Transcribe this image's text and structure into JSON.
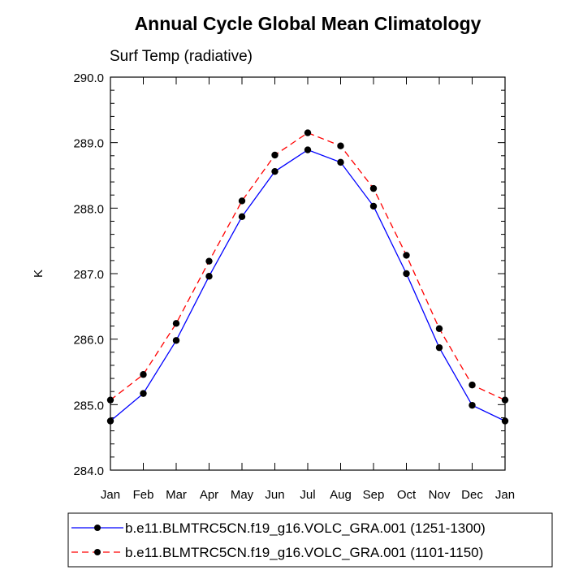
{
  "chart_data": {
    "type": "line",
    "title": "Annual Cycle Global Mean Climatology",
    "subtitle": "Surf Temp (radiative)",
    "xlabel": "",
    "ylabel": "K",
    "categories": [
      "Jan",
      "Feb",
      "Mar",
      "Apr",
      "May",
      "Jun",
      "Jul",
      "Aug",
      "Sep",
      "Oct",
      "Nov",
      "Dec",
      "Jan"
    ],
    "ylim": [
      284.0,
      290.0
    ],
    "yticks": [
      "284.0",
      "285.0",
      "286.0",
      "287.0",
      "288.0",
      "289.0",
      "290.0"
    ],
    "grid": false,
    "legend_position": "bottom",
    "series": [
      {
        "name": "b.e11.BLMTRC5CN.f19_g16.VOLC_GRA.001 (1251-1300)",
        "color": "#0000ff",
        "style": "solid",
        "marker": "circle",
        "values": [
          284.75,
          285.17,
          285.98,
          286.96,
          287.87,
          288.56,
          288.89,
          288.7,
          288.03,
          287.0,
          285.87,
          284.99,
          284.75
        ]
      },
      {
        "name": "b.e11.BLMTRC5CN.f19_g16.VOLC_GRA.001 (1101-1150)",
        "color": "#ff0000",
        "style": "dashed",
        "marker": "circle",
        "values": [
          285.07,
          285.46,
          286.24,
          287.19,
          288.11,
          288.81,
          289.15,
          288.95,
          288.3,
          287.28,
          286.16,
          285.3,
          285.07
        ]
      }
    ]
  }
}
